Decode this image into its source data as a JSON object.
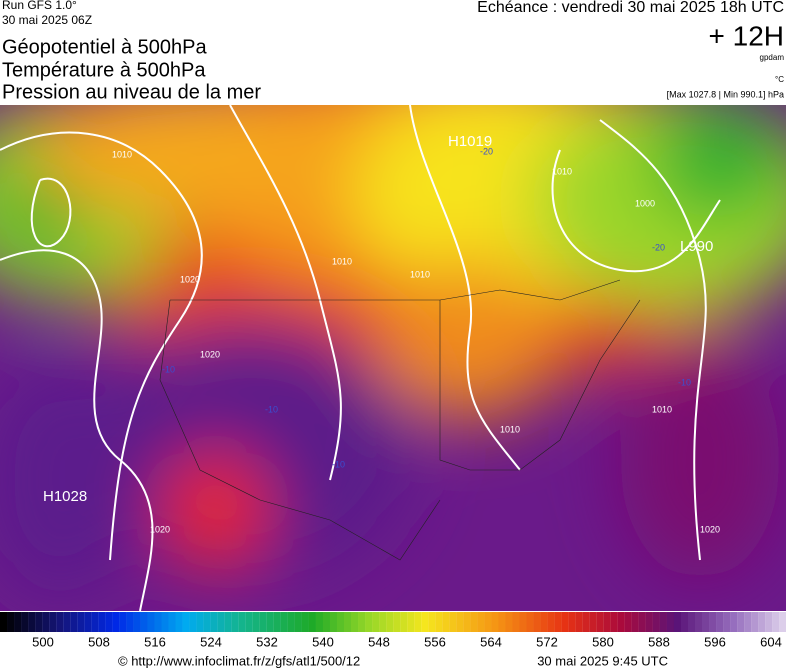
{
  "header": {
    "run": "Run GFS 1.0°",
    "date": "30 mai 2025 06Z",
    "title_lines": [
      "Géopotentiel à 500hPa",
      "Température à 500hPa",
      "Pression au niveau de la mer"
    ],
    "echeance": "Echéance : vendredi 30 mai 2025 18h UTC",
    "offset": "+ 12H",
    "unit_gpdam": "gpdam",
    "unit_temp": "°C",
    "range": "[Max 1027.8 | Min 990.1] hPa"
  },
  "map_labels": [
    "H1019",
    "H1028",
    "L990",
    "1010",
    "1010",
    "1020",
    "1010",
    "1010",
    "1020",
    "1000",
    "1010",
    "1020",
    "1020",
    "1010",
    "-20",
    "-20",
    "-10",
    "-10",
    "-10",
    "-10"
  ],
  "colorbar": {
    "labels": [
      500,
      508,
      516,
      524,
      532,
      540,
      548,
      556,
      564,
      572,
      580,
      588,
      596,
      604
    ]
  },
  "footer": {
    "url": "© http://www.infoclimat.fr/z/gfs/atl1/500/12",
    "time": "30 mai 2025  9:45 UTC"
  }
}
